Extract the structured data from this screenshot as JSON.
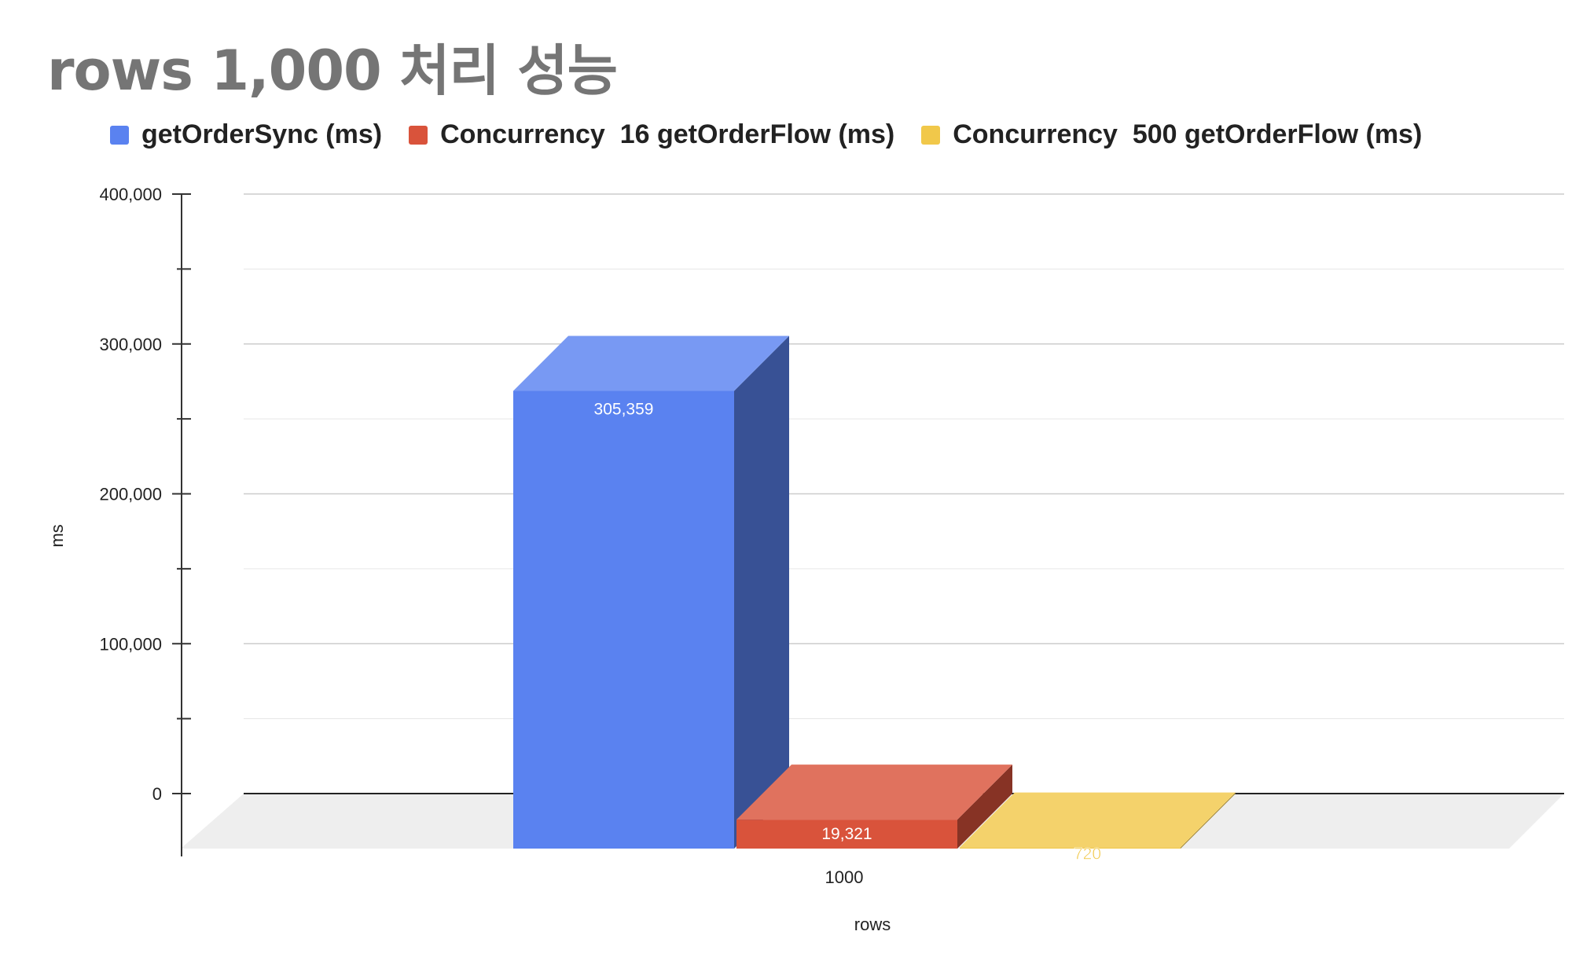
{
  "chart_data": {
    "type": "bar",
    "title": "rows 1,000 처리 성능",
    "xlabel": "rows",
    "ylabel": "ms",
    "categories": [
      "1000"
    ],
    "ylim": [
      0,
      400000
    ],
    "yticks": [
      0,
      100000,
      200000,
      300000,
      400000
    ],
    "ytick_labels": [
      "0",
      "100,000",
      "200,000",
      "300,000",
      "400,000"
    ],
    "grid": true,
    "legend_position": "top",
    "series": [
      {
        "name": "getOrderSync (ms)",
        "values": [
          305359
        ],
        "value_labels": [
          "305,359"
        ],
        "color": "#5a82f0"
      },
      {
        "name": "Concurrency  16 getOrderFlow (ms)",
        "values": [
          19321
        ],
        "value_labels": [
          "19,321"
        ],
        "color": "#d9533b"
      },
      {
        "name": "Concurrency  500 getOrderFlow (ms)",
        "values": [
          720
        ],
        "value_labels": [
          "720"
        ],
        "color": "#f1c84a"
      }
    ]
  }
}
